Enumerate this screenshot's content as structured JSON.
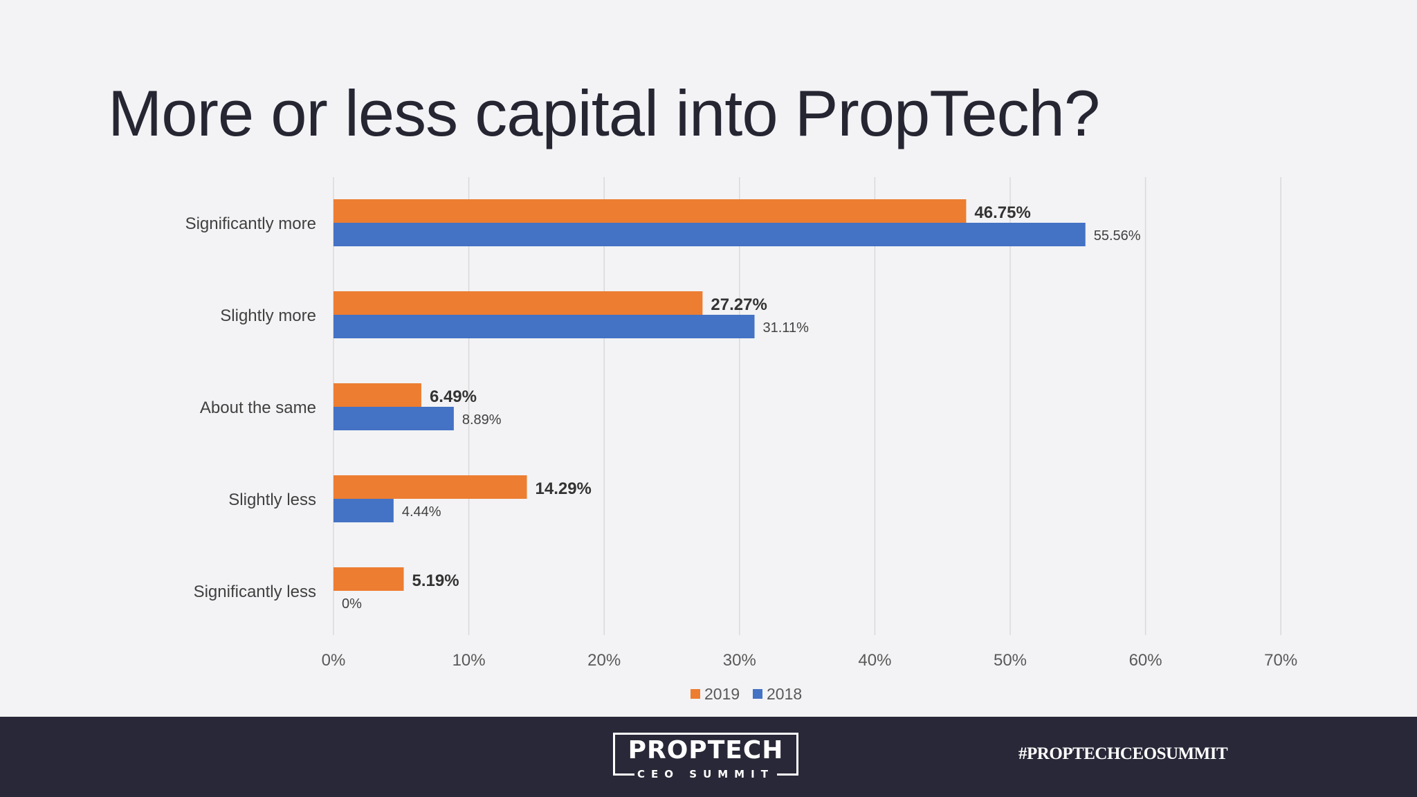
{
  "slide": {
    "title": "More or less capital into PropTech?",
    "logo_text": "PROPTECH",
    "logo_subtext": "CEO SUMMIT",
    "hashtag": "#PROPTECHCEOSUMMIT"
  },
  "colors": {
    "series_2019": "#ed7d31",
    "series_2018": "#4472c4",
    "background": "#f3f3f5",
    "footer": "#292838",
    "text": "#262633"
  },
  "chart_data": {
    "type": "bar",
    "orientation": "horizontal",
    "categories": [
      "Significantly more",
      "Slightly more",
      "About the same",
      "Slightly less",
      "Significantly less"
    ],
    "series": [
      {
        "name": "2019",
        "values": [
          46.75,
          27.27,
          6.49,
          14.29,
          5.19
        ],
        "labels": [
          "46.75%",
          "27.27%",
          "6.49%",
          "14.29%",
          "5.19%"
        ]
      },
      {
        "name": "2018",
        "values": [
          55.56,
          31.11,
          8.89,
          4.44,
          0
        ],
        "labels": [
          "55.56%",
          "31.11%",
          "8.89%",
          "4.44%",
          "0%"
        ]
      }
    ],
    "xlim": [
      0,
      70
    ],
    "x_ticks": [
      "0%",
      "10%",
      "20%",
      "30%",
      "40%",
      "50%",
      "60%",
      "70%"
    ],
    "grid": "vertical",
    "legend": "bottom"
  }
}
